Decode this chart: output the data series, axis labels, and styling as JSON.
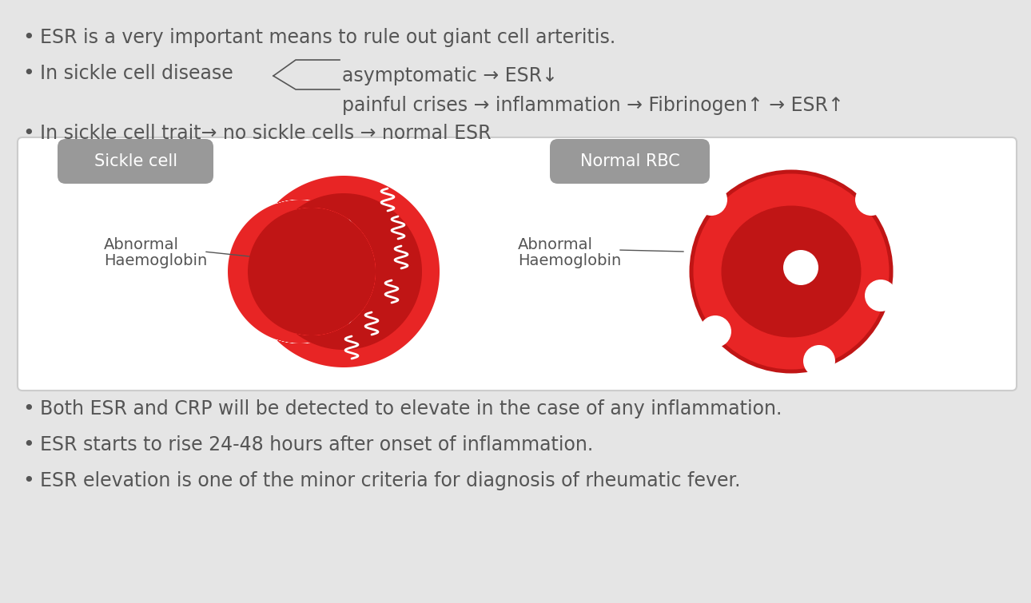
{
  "bg_color": "#e5e5e5",
  "panel_bg": "#ffffff",
  "text_color": "#555555",
  "red_bright": "#e82525",
  "red_dark": "#c01515",
  "red_darker": "#a01010",
  "gray_badge": "#999999",
  "bullet": "•",
  "line1": "ESR is a very important means to rule out giant cell arteritis.",
  "line2_prefix": "In sickle cell disease",
  "line2_upper": "asymptomatic → ESR↓",
  "line2_lower": "painful crises → inflammation → Fibrinogen↑ → ESR↑",
  "line3": "In sickle cell trait→ no sickle cells → normal ESR",
  "sickle_label": "Sickle cell",
  "normal_label": "Normal RBC",
  "abnormal_hb_1": "Abnormal",
  "abnormal_hb_2": "Haemoglobin",
  "bottom1": "Both ESR and CRP will be detected to elevate in the case of any inflammation.",
  "bottom2": "ESR starts to rise 24-48 hours after onset of inflammation.",
  "bottom3": "ESR elevation is one of the minor criteria for diagnosis of rheumatic fever.",
  "fs_main": 17,
  "fs_badge": 15,
  "fs_label": 14
}
